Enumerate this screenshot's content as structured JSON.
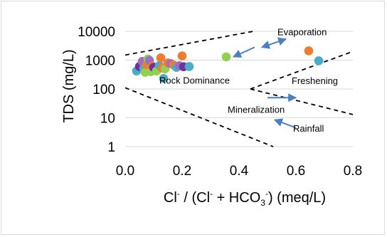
{
  "chart_data": {
    "type": "scatter",
    "title": "",
    "xlabel": "Cl⁻ / (Cl⁻ + HCO₃⁻) (meq/L)",
    "xlabel_parts": {
      "a": "Cl",
      "b": "-",
      "c": " / (Cl",
      "d": "-",
      "e": " + HCO",
      "f": "3",
      "g": "-",
      "h": ") (meq/L)"
    },
    "ylabel": "TDS (mg/L)",
    "xlim": [
      0,
      0.8
    ],
    "ylim": [
      1,
      10000
    ],
    "yscale": "log",
    "grid": "horizontal",
    "x_ticks": [
      "0.0",
      "0.2",
      "0.4",
      "0.6",
      "0.8"
    ],
    "y_ticks": [
      "1",
      "10",
      "100",
      "1000",
      "10000"
    ],
    "points": [
      {
        "x": 0.04,
        "y": 420,
        "color": "#4bacc6"
      },
      {
        "x": 0.05,
        "y": 600,
        "color": "#7030a0"
      },
      {
        "x": 0.06,
        "y": 900,
        "color": "#9b6fc6"
      },
      {
        "x": 0.065,
        "y": 520,
        "color": "#4bacc6"
      },
      {
        "x": 0.07,
        "y": 380,
        "color": "#92d050"
      },
      {
        "x": 0.075,
        "y": 700,
        "color": "#ed7d31"
      },
      {
        "x": 0.08,
        "y": 1100,
        "color": "#92d050"
      },
      {
        "x": 0.085,
        "y": 980,
        "color": "#9b6fc6"
      },
      {
        "x": 0.09,
        "y": 400,
        "color": "#92d050"
      },
      {
        "x": 0.095,
        "y": 620,
        "color": "#ed7d31"
      },
      {
        "x": 0.1,
        "y": 560,
        "color": "#7030a0"
      },
      {
        "x": 0.11,
        "y": 420,
        "color": "#92d050"
      },
      {
        "x": 0.12,
        "y": 650,
        "color": "#4bacc6"
      },
      {
        "x": 0.125,
        "y": 1200,
        "color": "#ed7d31"
      },
      {
        "x": 0.13,
        "y": 530,
        "color": "#ed7d31"
      },
      {
        "x": 0.135,
        "y": 230,
        "color": "#4bacc6"
      },
      {
        "x": 0.14,
        "y": 500,
        "color": "#92d050"
      },
      {
        "x": 0.15,
        "y": 800,
        "color": "#ed7d31"
      },
      {
        "x": 0.16,
        "y": 760,
        "color": "#9b6fc6"
      },
      {
        "x": 0.17,
        "y": 680,
        "color": "#ed7d31"
      },
      {
        "x": 0.18,
        "y": 560,
        "color": "#4bacc6"
      },
      {
        "x": 0.19,
        "y": 640,
        "color": "#9b6fc6"
      },
      {
        "x": 0.2,
        "y": 1400,
        "color": "#ed7d31"
      },
      {
        "x": 0.205,
        "y": 590,
        "color": "#7030a0"
      },
      {
        "x": 0.225,
        "y": 600,
        "color": "#4bacc6"
      },
      {
        "x": 0.355,
        "y": 1300,
        "color": "#92d050"
      },
      {
        "x": 0.645,
        "y": 2100,
        "color": "#ed7d31"
      },
      {
        "x": 0.68,
        "y": 950,
        "color": "#4bacc6"
      }
    ],
    "boundary_lines": [
      {
        "from": [
          0,
          1500
        ],
        "to": [
          0.45,
          10000
        ]
      },
      {
        "from": [
          0,
          110
        ],
        "to": [
          0.52,
          1
        ]
      },
      {
        "from": [
          0.44,
          100
        ],
        "to": [
          0.8,
          2000
        ]
      },
      {
        "from": [
          0.44,
          100
        ],
        "to": [
          0.8,
          13
        ]
      }
    ],
    "arrows": [
      {
        "from": [
          0.48,
          2800
        ],
        "to": [
          0.565,
          5400
        ],
        "double": true
      },
      {
        "from": [
          0.455,
          2800
        ],
        "to": [
          0.38,
          1300
        ],
        "double": false
      },
      {
        "from": [
          0.5,
          50
        ],
        "to": [
          0.6,
          50
        ],
        "double": false
      },
      {
        "from": [
          0.6,
          4.5
        ],
        "to": [
          0.525,
          8.5
        ],
        "double": false
      }
    ],
    "annotations": [
      {
        "text": "Evaporation",
        "x": 0.535,
        "y": 7400
      },
      {
        "text": "Rock Dominance",
        "x": 0.12,
        "y": 155
      },
      {
        "text": "Freshening",
        "x": 0.585,
        "y": 150
      },
      {
        "text": "Mineralization",
        "x": 0.36,
        "y": 15
      },
      {
        "text": "Rainfall",
        "x": 0.59,
        "y": 3.3
      }
    ]
  }
}
